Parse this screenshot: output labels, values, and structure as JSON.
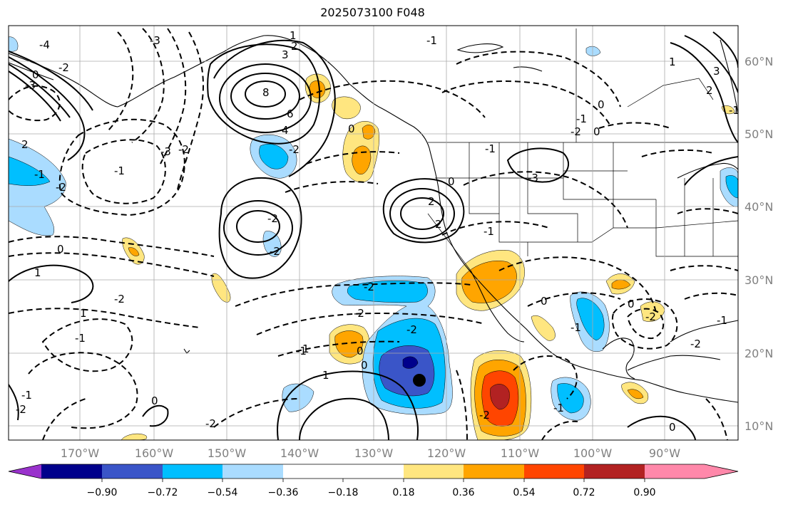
{
  "title": "2025073100 F048",
  "lat_labels": [
    "60°N",
    "50°N",
    "40°N",
    "30°N",
    "20°N",
    "10°N"
  ],
  "lon_labels": [
    "170°W",
    "160°W",
    "150°W",
    "140°W",
    "130°W",
    "120°W",
    "110°W",
    "100°W",
    "90°W"
  ],
  "colorbar": {
    "ticks": [
      "−0.90",
      "−0.72",
      "−0.54",
      "−0.36",
      "−0.18",
      "0.18",
      "0.36",
      "0.54",
      "0.72",
      "0.90"
    ],
    "colors": [
      "#9932cc",
      "#00008b",
      "#3a55c8",
      "#00bfff",
      "#aadcff",
      "#ffffff",
      "#ffe680",
      "#ffa500",
      "#ff4500",
      "#b22222",
      "#ff88aa"
    ]
  },
  "contour_labels": [
    "3",
    "2",
    "1",
    "0",
    "-1",
    "-2",
    "-3",
    "-4",
    "2",
    "4",
    "6",
    "8",
    "-2",
    "-2",
    "-2",
    "-2",
    "-1",
    "-3",
    "-2",
    "-1",
    "0",
    "1",
    "2",
    "2",
    "-2",
    "-1",
    "0",
    "1",
    "0",
    "-2",
    "-1",
    "-2",
    "0",
    "-3",
    "-1",
    "0",
    "-1",
    "-2",
    "0",
    "0",
    "1",
    "2",
    "3",
    "-1",
    "0",
    "-2",
    "-1",
    "0",
    "0",
    "-1",
    "-2",
    "-1",
    "0",
    "-2",
    "-1",
    "1",
    "-2",
    "-1",
    "-2",
    "-2",
    "-3",
    "1"
  ],
  "icons": {
    "storm_marker": "storm-center-dot-icon"
  }
}
